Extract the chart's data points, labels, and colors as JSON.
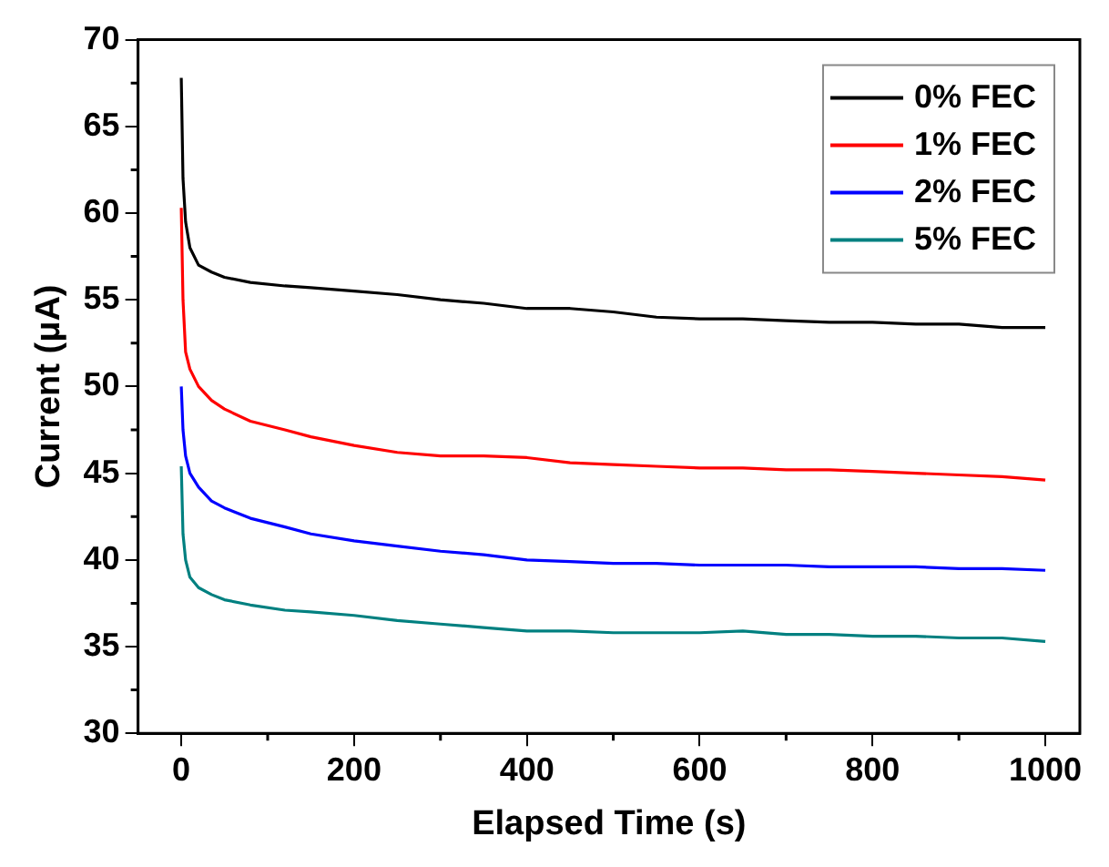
{
  "chart_data": {
    "type": "line",
    "xlabel": "Elapsed Time (s)",
    "ylabel": "Current (μA)",
    "xlim": [
      -50,
      1040
    ],
    "xticks": [
      0,
      200,
      400,
      600,
      800,
      1000
    ],
    "ylim": [
      30,
      70
    ],
    "yticks": [
      30,
      35,
      40,
      45,
      50,
      55,
      60,
      65,
      70
    ],
    "grid": false,
    "legend": "top right",
    "marker": "none",
    "line_style": "solid",
    "series": [
      {
        "name": "0% FEC",
        "color": "#000000",
        "x": [
          0,
          2,
          5,
          10,
          20,
          35,
          50,
          80,
          120,
          150,
          200,
          250,
          300,
          350,
          400,
          450,
          500,
          550,
          600,
          650,
          700,
          750,
          800,
          850,
          900,
          950,
          1000
        ],
        "values": [
          67.8,
          62,
          59.5,
          58,
          57,
          56.6,
          56.3,
          56,
          55.8,
          55.7,
          55.5,
          55.3,
          55,
          54.8,
          54.5,
          54.5,
          54.3,
          54,
          53.9,
          53.9,
          53.8,
          53.7,
          53.7,
          53.6,
          53.6,
          53.4,
          53.4
        ]
      },
      {
        "name": "1% FEC",
        "color": "#ff0000",
        "x": [
          0,
          2,
          5,
          10,
          20,
          35,
          50,
          80,
          120,
          150,
          200,
          250,
          300,
          350,
          400,
          450,
          500,
          550,
          600,
          650,
          700,
          750,
          800,
          850,
          900,
          950,
          1000
        ],
        "values": [
          60.3,
          55,
          52,
          51,
          50,
          49.2,
          48.7,
          48,
          47.5,
          47.1,
          46.6,
          46.2,
          46,
          46,
          45.9,
          45.6,
          45.5,
          45.4,
          45.3,
          45.3,
          45.2,
          45.2,
          45.1,
          45,
          44.9,
          44.8,
          44.6
        ]
      },
      {
        "name": "2% FEC",
        "color": "#0000ff",
        "x": [
          0,
          2,
          5,
          10,
          20,
          35,
          50,
          80,
          120,
          150,
          200,
          250,
          300,
          350,
          400,
          450,
          500,
          550,
          600,
          650,
          700,
          750,
          800,
          850,
          900,
          950,
          1000
        ],
        "values": [
          50,
          47.5,
          46,
          45,
          44.2,
          43.4,
          43,
          42.4,
          41.9,
          41.5,
          41.1,
          40.8,
          40.5,
          40.3,
          40,
          39.9,
          39.8,
          39.8,
          39.7,
          39.7,
          39.7,
          39.6,
          39.6,
          39.6,
          39.5,
          39.5,
          39.4
        ]
      },
      {
        "name": "5% FEC",
        "color": "#008080",
        "x": [
          0,
          2,
          5,
          10,
          20,
          35,
          50,
          80,
          120,
          150,
          200,
          250,
          300,
          350,
          400,
          450,
          500,
          550,
          600,
          650,
          700,
          750,
          800,
          850,
          900,
          950,
          1000
        ],
        "values": [
          45.4,
          41.5,
          40,
          39,
          38.4,
          38,
          37.7,
          37.4,
          37.1,
          37,
          36.8,
          36.5,
          36.3,
          36.1,
          35.9,
          35.9,
          35.8,
          35.8,
          35.8,
          35.9,
          35.7,
          35.7,
          35.6,
          35.6,
          35.5,
          35.5,
          35.3
        ]
      }
    ]
  }
}
